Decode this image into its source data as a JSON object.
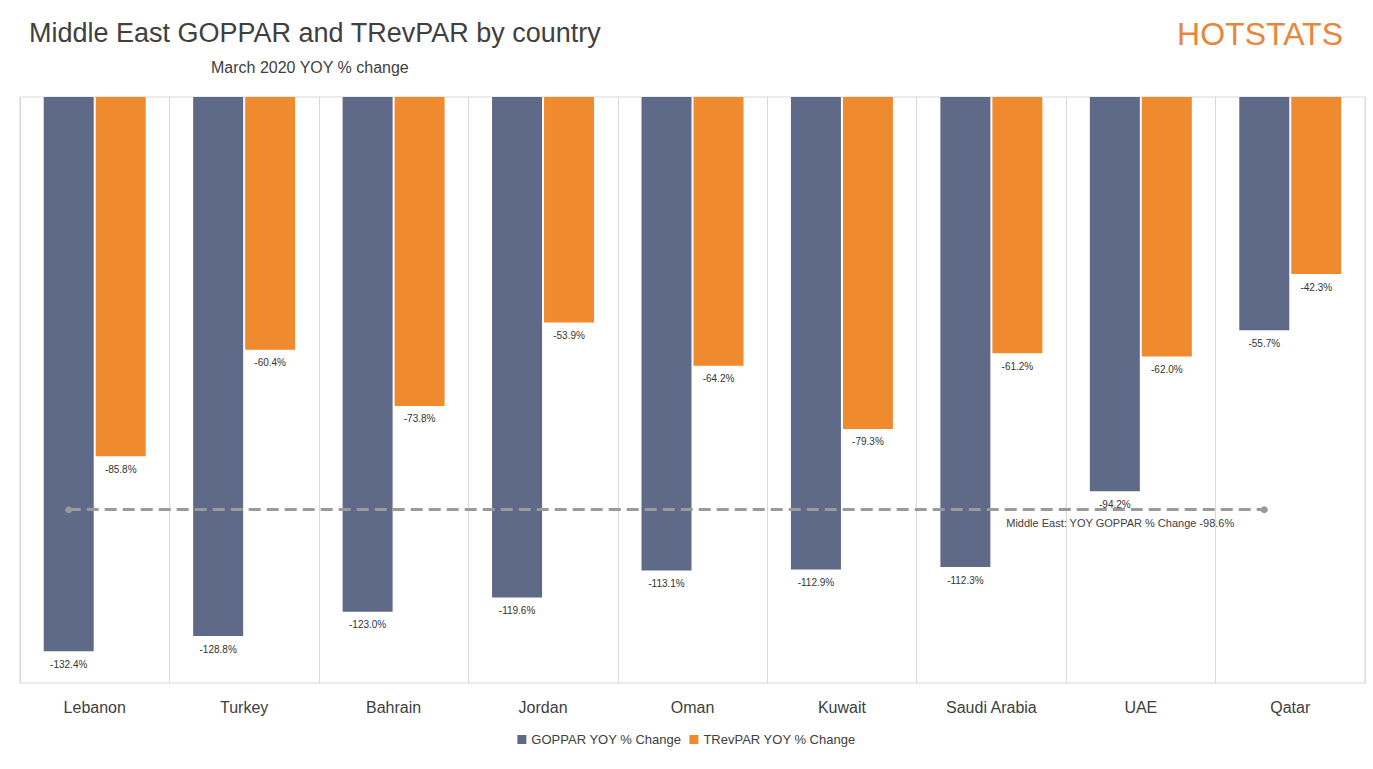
{
  "chart_data": {
    "type": "bar",
    "title": "Middle East GOPPAR and TRevPAR by country",
    "subtitle": "March 2020 YOY % change",
    "logo": "HOTSTATS",
    "categories": [
      "Lebanon",
      "Turkey",
      "Bahrain",
      "Jordan",
      "Oman",
      "Kuwait",
      "Saudi Arabia",
      "UAE",
      "Qatar"
    ],
    "series": [
      {
        "name": "GOPPAR YOY % Change",
        "color": "#5e6a87",
        "values": [
          -132.4,
          -128.8,
          -123.0,
          -119.6,
          -113.1,
          -112.9,
          -112.3,
          -94.2,
          -55.7
        ],
        "value_labels": [
          "-132.4%",
          "-128.8%",
          "-123.0%",
          "-119.6%",
          "-113.1%",
          "-112.9%",
          "-112.3%",
          "-94.2%",
          "-55.7%"
        ]
      },
      {
        "name": "TRevPAR YOY % Change",
        "color": "#ef8a2e",
        "values": [
          -85.8,
          -60.4,
          -73.8,
          -53.9,
          -64.2,
          -79.3,
          -61.2,
          -62.0,
          -42.3
        ],
        "value_labels": [
          "-85.8%",
          "-60.4%",
          "-73.8%",
          "-53.9%",
          "-64.2%",
          "-79.3%",
          "-61.2%",
          "-62.0%",
          "-42.3%"
        ]
      }
    ],
    "reference_line": {
      "value": -98.6,
      "label": "Middle East: YOY GOPPAR % Change -98.6%"
    },
    "ylim": [
      -140,
      0
    ],
    "tick_labels": "x",
    "grid": true,
    "legend": "bottom",
    "data_labels": true
  }
}
